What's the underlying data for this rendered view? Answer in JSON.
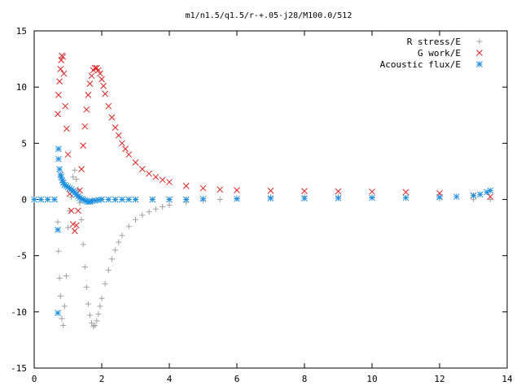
{
  "chart_data": {
    "type": "scatter",
    "title": "m1/n1.5/q1.5/r-+.05-j28/M100.0/512",
    "xlabel": "",
    "ylabel": "",
    "xlim": [
      0,
      14
    ],
    "ylim": [
      -15,
      15
    ],
    "xticks": [
      0,
      2,
      4,
      6,
      8,
      10,
      12,
      14
    ],
    "yticks": [
      -15,
      -10,
      -5,
      0,
      5,
      10,
      15
    ],
    "grid": false,
    "legend_position": "top-right",
    "series": [
      {
        "name": "R stress/E",
        "marker": "plus",
        "color": "#a0a0a0",
        "x": [
          0.7,
          0.72,
          0.75,
          0.78,
          0.82,
          0.86,
          0.9,
          0.95,
          1.0,
          1.05,
          1.1,
          1.15,
          1.2,
          1.25,
          1.3,
          1.35,
          1.4,
          1.45,
          1.5,
          1.55,
          1.6,
          1.65,
          1.7,
          1.75,
          1.8,
          1.85,
          1.9,
          1.95,
          2.0,
          2.1,
          2.2,
          2.3,
          2.4,
          2.5,
          2.6,
          2.8,
          3.0,
          3.2,
          3.4,
          3.6,
          3.8,
          4.0,
          4.5,
          5.0,
          5.5,
          6.0,
          7.0,
          8.0,
          9.0,
          10.0,
          11.0,
          12.0,
          13.0,
          13.5
        ],
        "y": [
          -2.0,
          -4.6,
          -7.0,
          -8.6,
          -10.6,
          -11.2,
          -9.5,
          -6.8,
          -2.5,
          -1.0,
          0.2,
          2.0,
          2.6,
          1.8,
          0.9,
          -0.3,
          -1.8,
          -4.0,
          -6.0,
          -7.8,
          -9.3,
          -10.3,
          -11.0,
          -11.3,
          -11.2,
          -10.8,
          -10.2,
          -9.5,
          -8.8,
          -7.5,
          -6.3,
          -5.3,
          -4.5,
          -3.8,
          -3.2,
          -2.4,
          -1.8,
          -1.4,
          -1.1,
          -0.85,
          -0.65,
          -0.5,
          -0.25,
          -0.1,
          0.0,
          0.1,
          0.22,
          0.28,
          0.25,
          0.2,
          0.14,
          0.08,
          0.02,
          0.0
        ]
      },
      {
        "name": "G work/E",
        "marker": "cross",
        "color": "#dd2222",
        "x": [
          0.7,
          0.72,
          0.75,
          0.78,
          0.8,
          0.82,
          0.85,
          0.88,
          0.92,
          0.96,
          1.0,
          1.05,
          1.1,
          1.15,
          1.2,
          1.25,
          1.3,
          1.35,
          1.4,
          1.45,
          1.5,
          1.55,
          1.6,
          1.65,
          1.7,
          1.75,
          1.8,
          1.85,
          1.9,
          1.95,
          2.0,
          2.05,
          2.1,
          2.2,
          2.3,
          2.4,
          2.5,
          2.6,
          2.7,
          2.8,
          3.0,
          3.2,
          3.4,
          3.6,
          3.8,
          4.0,
          4.5,
          5.0,
          5.5,
          6.0,
          7.0,
          8.0,
          9.0,
          10.0,
          11.0,
          12.0,
          13.0,
          13.5
        ],
        "y": [
          7.6,
          9.3,
          10.5,
          11.6,
          12.4,
          12.8,
          12.7,
          11.2,
          8.3,
          6.3,
          4.0,
          0.5,
          -1.0,
          -2.2,
          -2.8,
          -2.3,
          -1.0,
          0.8,
          2.7,
          4.8,
          6.5,
          8.0,
          9.3,
          10.3,
          11.0,
          11.5,
          11.7,
          11.7,
          11.5,
          11.2,
          10.7,
          10.1,
          9.4,
          8.3,
          7.3,
          6.4,
          5.7,
          5.0,
          4.5,
          4.0,
          3.3,
          2.7,
          2.3,
          2.0,
          1.75,
          1.55,
          1.2,
          1.0,
          0.88,
          0.82,
          0.78,
          0.75,
          0.72,
          0.7,
          0.65,
          0.55,
          0.35,
          0.25
        ]
      },
      {
        "name": "Acoustic flux/E",
        "marker": "star",
        "color": "#1e8fe0",
        "x": [
          0.0,
          0.2,
          0.4,
          0.6,
          0.7,
          0.7,
          0.72,
          0.72,
          0.75,
          0.78,
          0.8,
          0.83,
          0.86,
          0.9,
          0.95,
          1.0,
          1.05,
          1.1,
          1.15,
          1.2,
          1.25,
          1.3,
          1.35,
          1.4,
          1.45,
          1.5,
          1.55,
          1.6,
          1.65,
          1.7,
          1.8,
          1.9,
          2.0,
          2.2,
          2.4,
          2.6,
          2.8,
          3.0,
          3.5,
          4.0,
          4.5,
          5.0,
          6.0,
          7.0,
          8.0,
          9.0,
          10.0,
          11.0,
          12.0,
          12.5,
          13.0,
          13.2,
          13.4,
          13.5
        ],
        "y": [
          0.0,
          0.0,
          0.0,
          0.0,
          -10.1,
          -2.7,
          4.5,
          3.6,
          2.7,
          2.2,
          2.0,
          1.7,
          1.5,
          1.3,
          1.2,
          1.1,
          1.0,
          0.9,
          0.75,
          0.6,
          0.45,
          0.3,
          0.15,
          0.05,
          0.0,
          -0.1,
          -0.15,
          -0.2,
          -0.2,
          -0.15,
          -0.1,
          -0.05,
          0.0,
          0.0,
          0.0,
          0.0,
          0.0,
          0.0,
          0.0,
          0.0,
          0.0,
          0.05,
          0.05,
          0.1,
          0.1,
          0.12,
          0.15,
          0.15,
          0.2,
          0.25,
          0.35,
          0.45,
          0.65,
          0.8
        ]
      }
    ]
  }
}
